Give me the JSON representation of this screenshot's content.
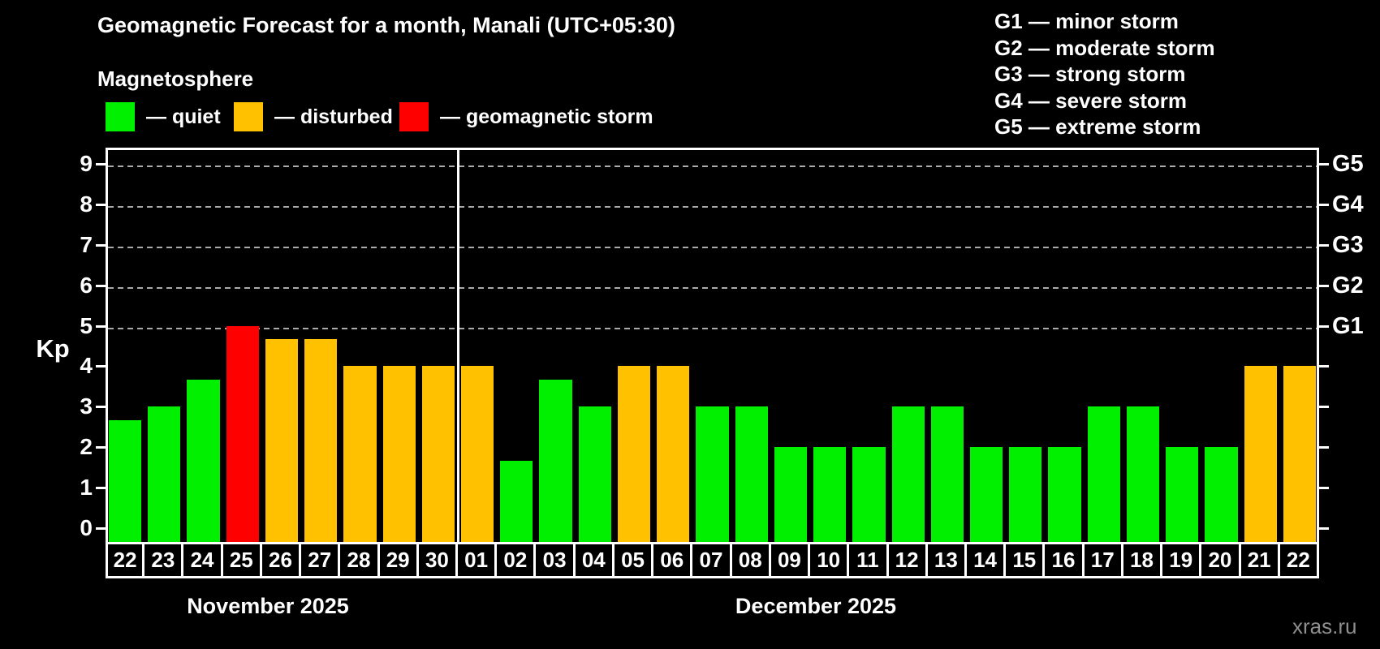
{
  "title": "Geomagnetic Forecast for a month, Manali (UTC+05:30)",
  "subtitle": "Magnetosphere",
  "watermark": "xras.ru",
  "colors": {
    "quiet": "#00f000",
    "disturbed": "#ffc100",
    "storm": "#ff0000",
    "grid": "#aaaaaa",
    "axis": "#ffffff",
    "watermark_gray": "#8f8f8f"
  },
  "legend": [
    {
      "status": "quiet",
      "label": "— quiet"
    },
    {
      "status": "disturbed",
      "label": "— disturbed"
    },
    {
      "status": "storm",
      "label": "— geomagnetic storm"
    }
  ],
  "storm_scale": [
    "G1 — minor storm",
    "G2 — moderate storm",
    "G3 — strong storm",
    "G4 — severe storm",
    "G5 — extreme storm"
  ],
  "chart_data": {
    "type": "bar",
    "ylabel": "Kp",
    "ylim": [
      0,
      9
    ],
    "yticks": [
      0,
      1,
      2,
      3,
      4,
      5,
      6,
      7,
      8,
      9
    ],
    "gridlines_at_kp": [
      5,
      6,
      7,
      8,
      9
    ],
    "grid": "dashed",
    "right_axis": [
      {
        "kp": 5,
        "label": "G1"
      },
      {
        "kp": 6,
        "label": "G2"
      },
      {
        "kp": 7,
        "label": "G3"
      },
      {
        "kp": 8,
        "label": "G4"
      },
      {
        "kp": 9,
        "label": "G5"
      }
    ],
    "months": [
      {
        "label": "November 2025",
        "short": "nov",
        "days": 9
      },
      {
        "label": "December 2025",
        "short": "dec",
        "days": 22
      }
    ],
    "bars": [
      {
        "date": "22",
        "kp": 2.67,
        "status": "quiet"
      },
      {
        "date": "23",
        "kp": 3,
        "status": "quiet"
      },
      {
        "date": "24",
        "kp": 3.67,
        "status": "quiet"
      },
      {
        "date": "25",
        "kp": 5,
        "status": "storm"
      },
      {
        "date": "26",
        "kp": 4.67,
        "status": "disturbed"
      },
      {
        "date": "27",
        "kp": 4.67,
        "status": "disturbed"
      },
      {
        "date": "28",
        "kp": 4,
        "status": "disturbed"
      },
      {
        "date": "29",
        "kp": 4,
        "status": "disturbed"
      },
      {
        "date": "30",
        "kp": 4,
        "status": "disturbed"
      },
      {
        "date": "01",
        "kp": 4,
        "status": "disturbed"
      },
      {
        "date": "02",
        "kp": 1.67,
        "status": "quiet"
      },
      {
        "date": "03",
        "kp": 3.67,
        "status": "quiet"
      },
      {
        "date": "04",
        "kp": 3,
        "status": "quiet"
      },
      {
        "date": "05",
        "kp": 4,
        "status": "disturbed"
      },
      {
        "date": "06",
        "kp": 4,
        "status": "disturbed"
      },
      {
        "date": "07",
        "kp": 3,
        "status": "quiet"
      },
      {
        "date": "08",
        "kp": 3,
        "status": "quiet"
      },
      {
        "date": "09",
        "kp": 2,
        "status": "quiet"
      },
      {
        "date": "10",
        "kp": 2,
        "status": "quiet"
      },
      {
        "date": "11",
        "kp": 2,
        "status": "quiet"
      },
      {
        "date": "12",
        "kp": 3,
        "status": "quiet"
      },
      {
        "date": "13",
        "kp": 3,
        "status": "quiet"
      },
      {
        "date": "14",
        "kp": 2,
        "status": "quiet"
      },
      {
        "date": "15",
        "kp": 2,
        "status": "quiet"
      },
      {
        "date": "16",
        "kp": 2,
        "status": "quiet"
      },
      {
        "date": "17",
        "kp": 3,
        "status": "quiet"
      },
      {
        "date": "18",
        "kp": 3,
        "status": "quiet"
      },
      {
        "date": "19",
        "kp": 2,
        "status": "quiet"
      },
      {
        "date": "20",
        "kp": 2,
        "status": "quiet"
      },
      {
        "date": "21",
        "kp": 4,
        "status": "disturbed"
      },
      {
        "date": "22",
        "kp": 4,
        "status": "disturbed"
      }
    ]
  }
}
